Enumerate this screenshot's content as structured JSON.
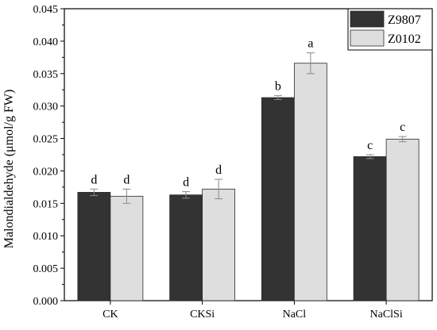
{
  "chart_data": {
    "type": "bar",
    "title": "",
    "xlabel": "",
    "ylabel": "Malondialdehyde (μmol/g FW)",
    "ylim": [
      0,
      0.045
    ],
    "yticks": [
      "0.000",
      "0.005",
      "0.010",
      "0.015",
      "0.020",
      "0.025",
      "0.030",
      "0.035",
      "0.040",
      "0.045"
    ],
    "categories": [
      "CK",
      "CKSi",
      "NaCl",
      "NaClSi"
    ],
    "legend_position": "top-right",
    "grid": false,
    "series": [
      {
        "name": "Z9807",
        "color": "#333333",
        "values": [
          0.0167,
          0.0163,
          0.0313,
          0.0222
        ],
        "errors": [
          0.0005,
          0.0005,
          0.0003,
          0.0003
        ],
        "letters": [
          "d",
          "d",
          "b",
          "c"
        ]
      },
      {
        "name": "Z0102",
        "color": "#dedede",
        "values": [
          0.0161,
          0.0172,
          0.0366,
          0.0249
        ],
        "errors": [
          0.0011,
          0.0015,
          0.0016,
          0.0004
        ],
        "letters": [
          "d",
          "d",
          "a",
          "c"
        ]
      }
    ]
  }
}
